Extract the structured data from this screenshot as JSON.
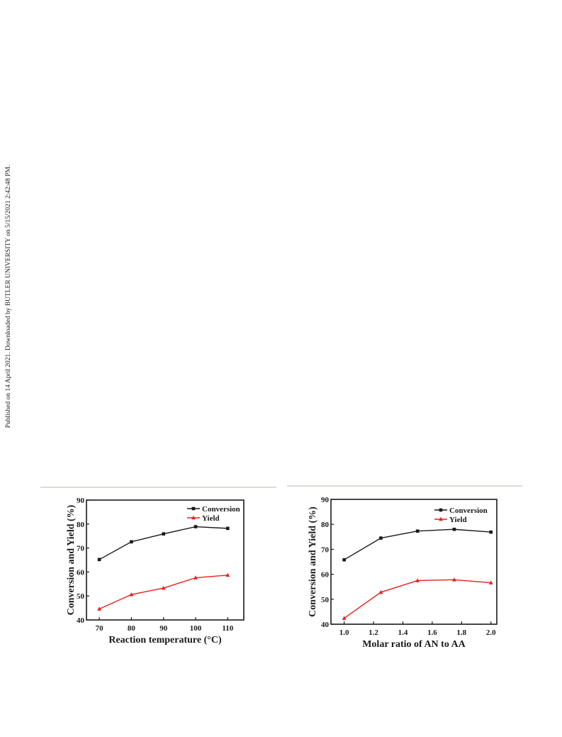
{
  "side_note": "Published on 14 April 2021. Downloaded by BUTLER UNIVERSITY on 5/15/2021 2:42:48 PM.",
  "chart_data": [
    {
      "type": "line",
      "xlabel": "Reaction temperature (°C)",
      "ylabel": "Conversion and Yield (%)",
      "x": [
        70,
        80,
        90,
        100,
        110
      ],
      "xticks": [
        "70",
        "80",
        "90",
        "100",
        "110"
      ],
      "xlim": [
        66,
        115
      ],
      "ylim": [
        40,
        90
      ],
      "yticks": [
        "40",
        "50",
        "60",
        "70",
        "80",
        "90"
      ],
      "legend_position": "top-right",
      "series": [
        {
          "name": "Conversion",
          "color": "#1a1a1a",
          "marker": "square",
          "values": [
            65.2,
            72.6,
            75.9,
            78.9,
            78.2
          ]
        },
        {
          "name": "Yield",
          "color": "#e8201c",
          "marker": "triangle",
          "values": [
            44.6,
            50.6,
            53.3,
            57.6,
            58.7
          ]
        }
      ]
    },
    {
      "type": "line",
      "xlabel": "Molar ratio of AN to AA",
      "ylabel": "Conversion and Yield (%)",
      "x": [
        1.0,
        1.25,
        1.5,
        1.75,
        2.0
      ],
      "xticks": [
        "1.0",
        "1.2",
        "1.4",
        "1.6",
        "1.8",
        "2.0"
      ],
      "xlim": [
        0.91,
        2.04
      ],
      "ylim": [
        40,
        90
      ],
      "yticks": [
        "40",
        "50",
        "60",
        "70",
        "80",
        "90"
      ],
      "legend_position": "top-right",
      "series": [
        {
          "name": "Conversion",
          "color": "#1a1a1a",
          "marker": "square",
          "values": [
            65.8,
            74.5,
            77.3,
            78.0,
            76.9
          ]
        },
        {
          "name": "Yield",
          "color": "#e8201c",
          "marker": "triangle",
          "values": [
            42.4,
            52.8,
            57.5,
            57.8,
            56.6
          ]
        }
      ]
    }
  ]
}
